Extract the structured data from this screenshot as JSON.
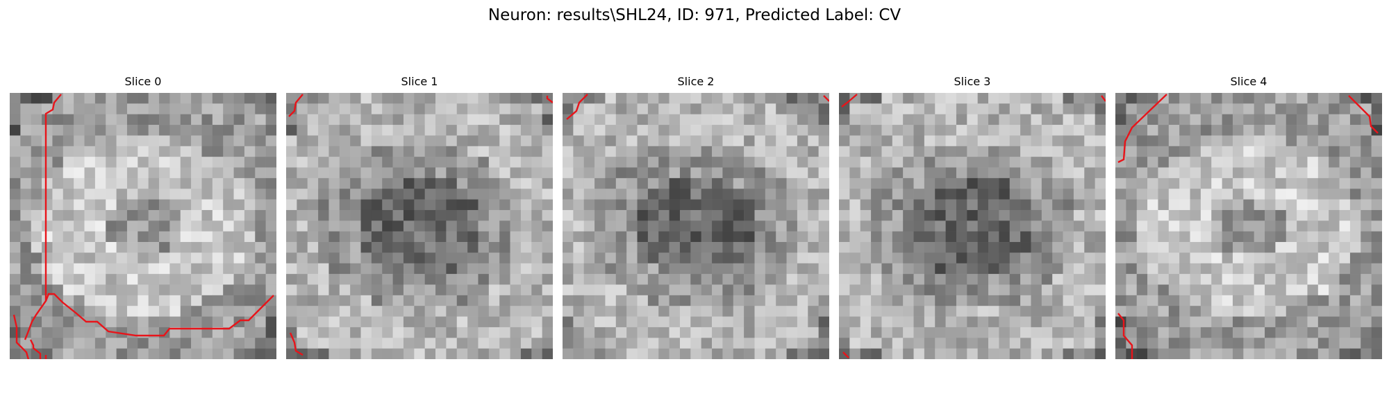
{
  "figure": {
    "title": "Neuron: results\\SHL24, ID: 971, Predicted Label: CV"
  },
  "slices": [
    {
      "title": "Slice 0",
      "seed": 11,
      "darkCenter": false,
      "brightRing": true
    },
    {
      "title": "Slice 1",
      "seed": 23,
      "darkCenter": true,
      "brightRing": false
    },
    {
      "title": "Slice 2",
      "seed": 37,
      "darkCenter": true,
      "brightRing": false
    },
    {
      "title": "Slice 3",
      "seed": 41,
      "darkCenter": true,
      "brightRing": false
    },
    {
      "title": "Slice 4",
      "seed": 53,
      "darkCenter": false,
      "brightRing": true
    }
  ],
  "colors": {
    "contour": "#e8141a",
    "background": "#ffffff"
  },
  "image": {
    "grid_size": 25,
    "colormap": "gray"
  }
}
